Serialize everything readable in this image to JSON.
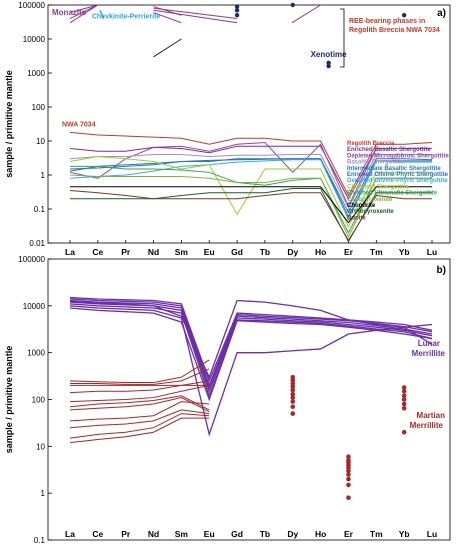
{
  "elements": [
    "La",
    "Ce",
    "Pr",
    "Nd",
    "Sm",
    "Eu",
    "Gd",
    "Tb",
    "Dy",
    "Ho",
    "Er",
    "Tm",
    "Yb",
    "Lu"
  ],
  "colors": {
    "nwa": "#c0392b",
    "merr_lunar": "#6a2fa6",
    "merr_mars": "#a3282a",
    "monazite": "#8e3a8a",
    "chevk": "#29a3dc",
    "xeno": "#1a2a6e"
  },
  "chart_data": [
    {
      "type": "line",
      "panel": "a)",
      "ylabel": "sample / primitive mantle",
      "yscale": "log",
      "ylim": [
        0.01,
        100000
      ],
      "yticks": [
        "0.01",
        "0.1",
        "1",
        "10",
        "100",
        "1000",
        "10000",
        "100000"
      ],
      "mineral_labels": {
        "monazite": "Monazite",
        "chevkinite": "Chevkinite-Perrierite",
        "xenotime": "Xenotime",
        "bracket": "REE-bearing phases in Regolith Breccia NWA 7034",
        "nwa": "NWA 7034"
      },
      "series": [
        {
          "name": "Regolith Breccia",
          "color": "#c0392b",
          "values": [
            18,
            15,
            14,
            13,
            12,
            8,
            12,
            12,
            10,
            10,
            0.25,
            8,
            8,
            9
          ]
        },
        {
          "name": "Enriched Basaltic Shergottite",
          "color": "#7b2d8e",
          "values": [
            6,
            5,
            5,
            6.5,
            6,
            4.5,
            7,
            7,
            7,
            7,
            0.2,
            6,
            6,
            6
          ]
        },
        {
          "name": "Depleted Microgabbroic Shergottite",
          "color": "#8e44ad",
          "values": [
            1.2,
            0.8,
            3,
            6.5,
            7,
            5,
            8,
            9,
            1.2,
            8,
            0.12,
            6,
            6,
            6
          ]
        },
        {
          "name": "Basaltic Shergottite",
          "color": "#a48ec4",
          "values": [
            3,
            3.5,
            3.5,
            4,
            4,
            3.5,
            3.8,
            3.8,
            4,
            4,
            0.11,
            4,
            4,
            4
          ]
        },
        {
          "name": "Intermediate Basaltic Shergottite",
          "color": "#1d7ab8",
          "values": [
            1.3,
            1.8,
            2,
            2.2,
            2.5,
            2.5,
            3,
            3,
            3,
            3,
            0.08,
            3,
            3,
            2.8
          ]
        },
        {
          "name": "Enriched Olivine-Phyric Shergottite",
          "color": "#2a6fb8",
          "values": [
            1.5,
            1.6,
            1.8,
            2,
            2.5,
            2.7,
            2.8,
            2.9,
            3,
            3,
            0.06,
            2.6,
            2.6,
            2.6
          ]
        },
        {
          "name": "Depleted Olivine-Phyric Shergottite",
          "color": "#3da8de",
          "values": [
            0.8,
            0.9,
            1,
            1.3,
            1.8,
            2,
            2.4,
            2.6,
            2.8,
            2.8,
            0.05,
            2.6,
            2.4,
            2.4
          ]
        },
        {
          "name": "Chloritoid Shergottite",
          "color": "#9acd32",
          "values": [
            2.5,
            3.5,
            3,
            2.5,
            1.5,
            2,
            0.07,
            1.5,
            1.5,
            1.5,
            0.03,
            1.2,
            1.2,
            1.2
          ]
        },
        {
          "name": "Enriched Ultramafic Shergottite",
          "color": "#3aa34a",
          "values": [
            1.8,
            1.8,
            1.5,
            1.5,
            1.4,
            1.2,
            0.6,
            0.5,
            0.7,
            0.8,
            0.02,
            0.8,
            0.8,
            0.8
          ]
        },
        {
          "name": "Clinopyroxenite",
          "color": "#7cb342",
          "values": [
            1,
            0.9,
            0.9,
            0.9,
            0.9,
            0.8,
            0.6,
            0.6,
            0.8,
            0.8,
            0.015,
            0.8,
            0.8,
            0.8
          ]
        },
        {
          "name": "Chondrite",
          "color": "#000000",
          "values": [
            0.45,
            0.45,
            0.45,
            0.45,
            0.45,
            0.45,
            0.45,
            0.45,
            0.45,
            0.45,
            0.04,
            0.45,
            0.45,
            0.45
          ]
        },
        {
          "name": "Orthopyroxenite",
          "color": "#1e5c2a",
          "values": [
            0.2,
            0.2,
            0.2,
            0.2,
            0.25,
            0.3,
            0.3,
            0.3,
            0.4,
            0.4,
            0.011,
            0.3,
            0.3,
            0.3
          ]
        },
        {
          "name": "Dunite",
          "color": "#6e3b2a",
          "values": [
            0.35,
            0.3,
            0.25,
            0.2,
            0.2,
            0.2,
            0.2,
            0.25,
            0.3,
            0.3,
            0.012,
            0.25,
            0.2,
            0.2
          ]
        }
      ]
    },
    {
      "type": "line",
      "panel": "b)",
      "ylabel": "sample / primitive mantle",
      "yscale": "log",
      "ylim": [
        0.1,
        100000
      ],
      "yticks": [
        "0.1",
        "1",
        "10",
        "100",
        "1000",
        "10000",
        "100000"
      ],
      "group_labels": {
        "lunar": [
          "Lunar",
          "Merrillite"
        ],
        "mars": [
          "Martian",
          "Merrillite"
        ]
      },
      "lunar_series": [
        [
          15000,
          14000,
          13500,
          13000,
          11000,
          250,
          7000,
          6500,
          6000,
          5500,
          5000,
          4500,
          4000,
          3000
        ],
        [
          14000,
          13000,
          12500,
          12000,
          10000,
          200,
          6500,
          6000,
          5600,
          5200,
          4800,
          4200,
          3600,
          2800
        ],
        [
          13000,
          12000,
          11500,
          11000,
          9000,
          180,
          6000,
          5600,
          5200,
          4800,
          4400,
          3800,
          3200,
          2500
        ],
        [
          12000,
          11000,
          10500,
          10000,
          8000,
          150,
          5500,
          5200,
          4800,
          4500,
          4000,
          3500,
          3000,
          2300
        ],
        [
          11000,
          10000,
          9500,
          9000,
          7000,
          120,
          5000,
          4800,
          4500,
          4200,
          3700,
          3200,
          2800,
          2000
        ],
        [
          10000,
          9000,
          8500,
          8000,
          5500,
          18,
          1000,
          1000,
          1100,
          1200,
          2500,
          3000,
          3500,
          1500
        ],
        [
          12500,
          11500,
          11000,
          10000,
          6000,
          300,
          13000,
          12000,
          10000,
          8000,
          5000,
          4000,
          3500,
          4000
        ],
        [
          9000,
          8000,
          7500,
          7000,
          4500,
          100,
          4800,
          4500,
          4200,
          4000,
          3500,
          3000,
          2500,
          2000
        ]
      ],
      "mars_series": [
        [
          250,
          240,
          230,
          230,
          300,
          700
        ],
        [
          220,
          220,
          210,
          210,
          250,
          450
        ],
        [
          200,
          200,
          200,
          200,
          200,
          200
        ],
        [
          140,
          150,
          150,
          160,
          200,
          250
        ],
        [
          90,
          95,
          100,
          110,
          150,
          200
        ],
        [
          70,
          80,
          85,
          95,
          120,
          60
        ],
        [
          60,
          65,
          70,
          80,
          110,
          55
        ],
        [
          35,
          38,
          40,
          45,
          90,
          80
        ],
        [
          25,
          28,
          30,
          35,
          60,
          50
        ],
        [
          15,
          18,
          20,
          25,
          50,
          45
        ],
        [
          12,
          14,
          16,
          20,
          40,
          40
        ]
      ],
      "mars_dy": [
        300,
        260,
        220,
        190,
        160,
        130,
        110,
        90,
        70,
        50
      ],
      "mars_er": [
        6,
        5,
        4.5,
        4,
        3.5,
        3,
        2.5,
        2,
        1.5,
        0.8
      ],
      "mars_yb": [
        180,
        150,
        120,
        100,
        80,
        65,
        20
      ]
    }
  ]
}
